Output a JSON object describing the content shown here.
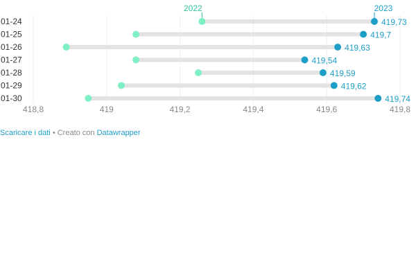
{
  "chart_data": {
    "type": "dot-range",
    "xlim": [
      418.8,
      419.8
    ],
    "ticks": [
      418.8,
      419,
      419.2,
      419.4,
      419.6,
      419.8
    ],
    "tick_labels": [
      "418,8",
      "419",
      "419,2",
      "419,4",
      "419,6",
      "419,8"
    ],
    "categories": [
      "01-24",
      "01-25",
      "01-26",
      "01-27",
      "01-28",
      "01-29",
      "01-30"
    ],
    "series": [
      {
        "name": "2022",
        "color": "#7ef0c4",
        "values": [
          419.26,
          419.08,
          418.89,
          419.08,
          419.25,
          419.04,
          418.95
        ]
      },
      {
        "name": "2023",
        "color": "#1d9ec7",
        "values": [
          419.73,
          419.7,
          419.63,
          419.54,
          419.59,
          419.62,
          419.74
        ],
        "labels": [
          "419,73",
          "419,7",
          "419,63",
          "419,54",
          "419,59",
          "419,62",
          "419,74"
        ]
      }
    ],
    "colors": {
      "bar": "#e3e3e3",
      "grid": "#eeeeee",
      "axis_text": "#888888",
      "category_text": "#333333",
      "legend_2022": "#2ec49a"
    }
  },
  "footer": {
    "download_link": "Scaricare i dati",
    "separator": " • ",
    "created_with": "Creato con ",
    "tool_link": "Datawrapper"
  }
}
